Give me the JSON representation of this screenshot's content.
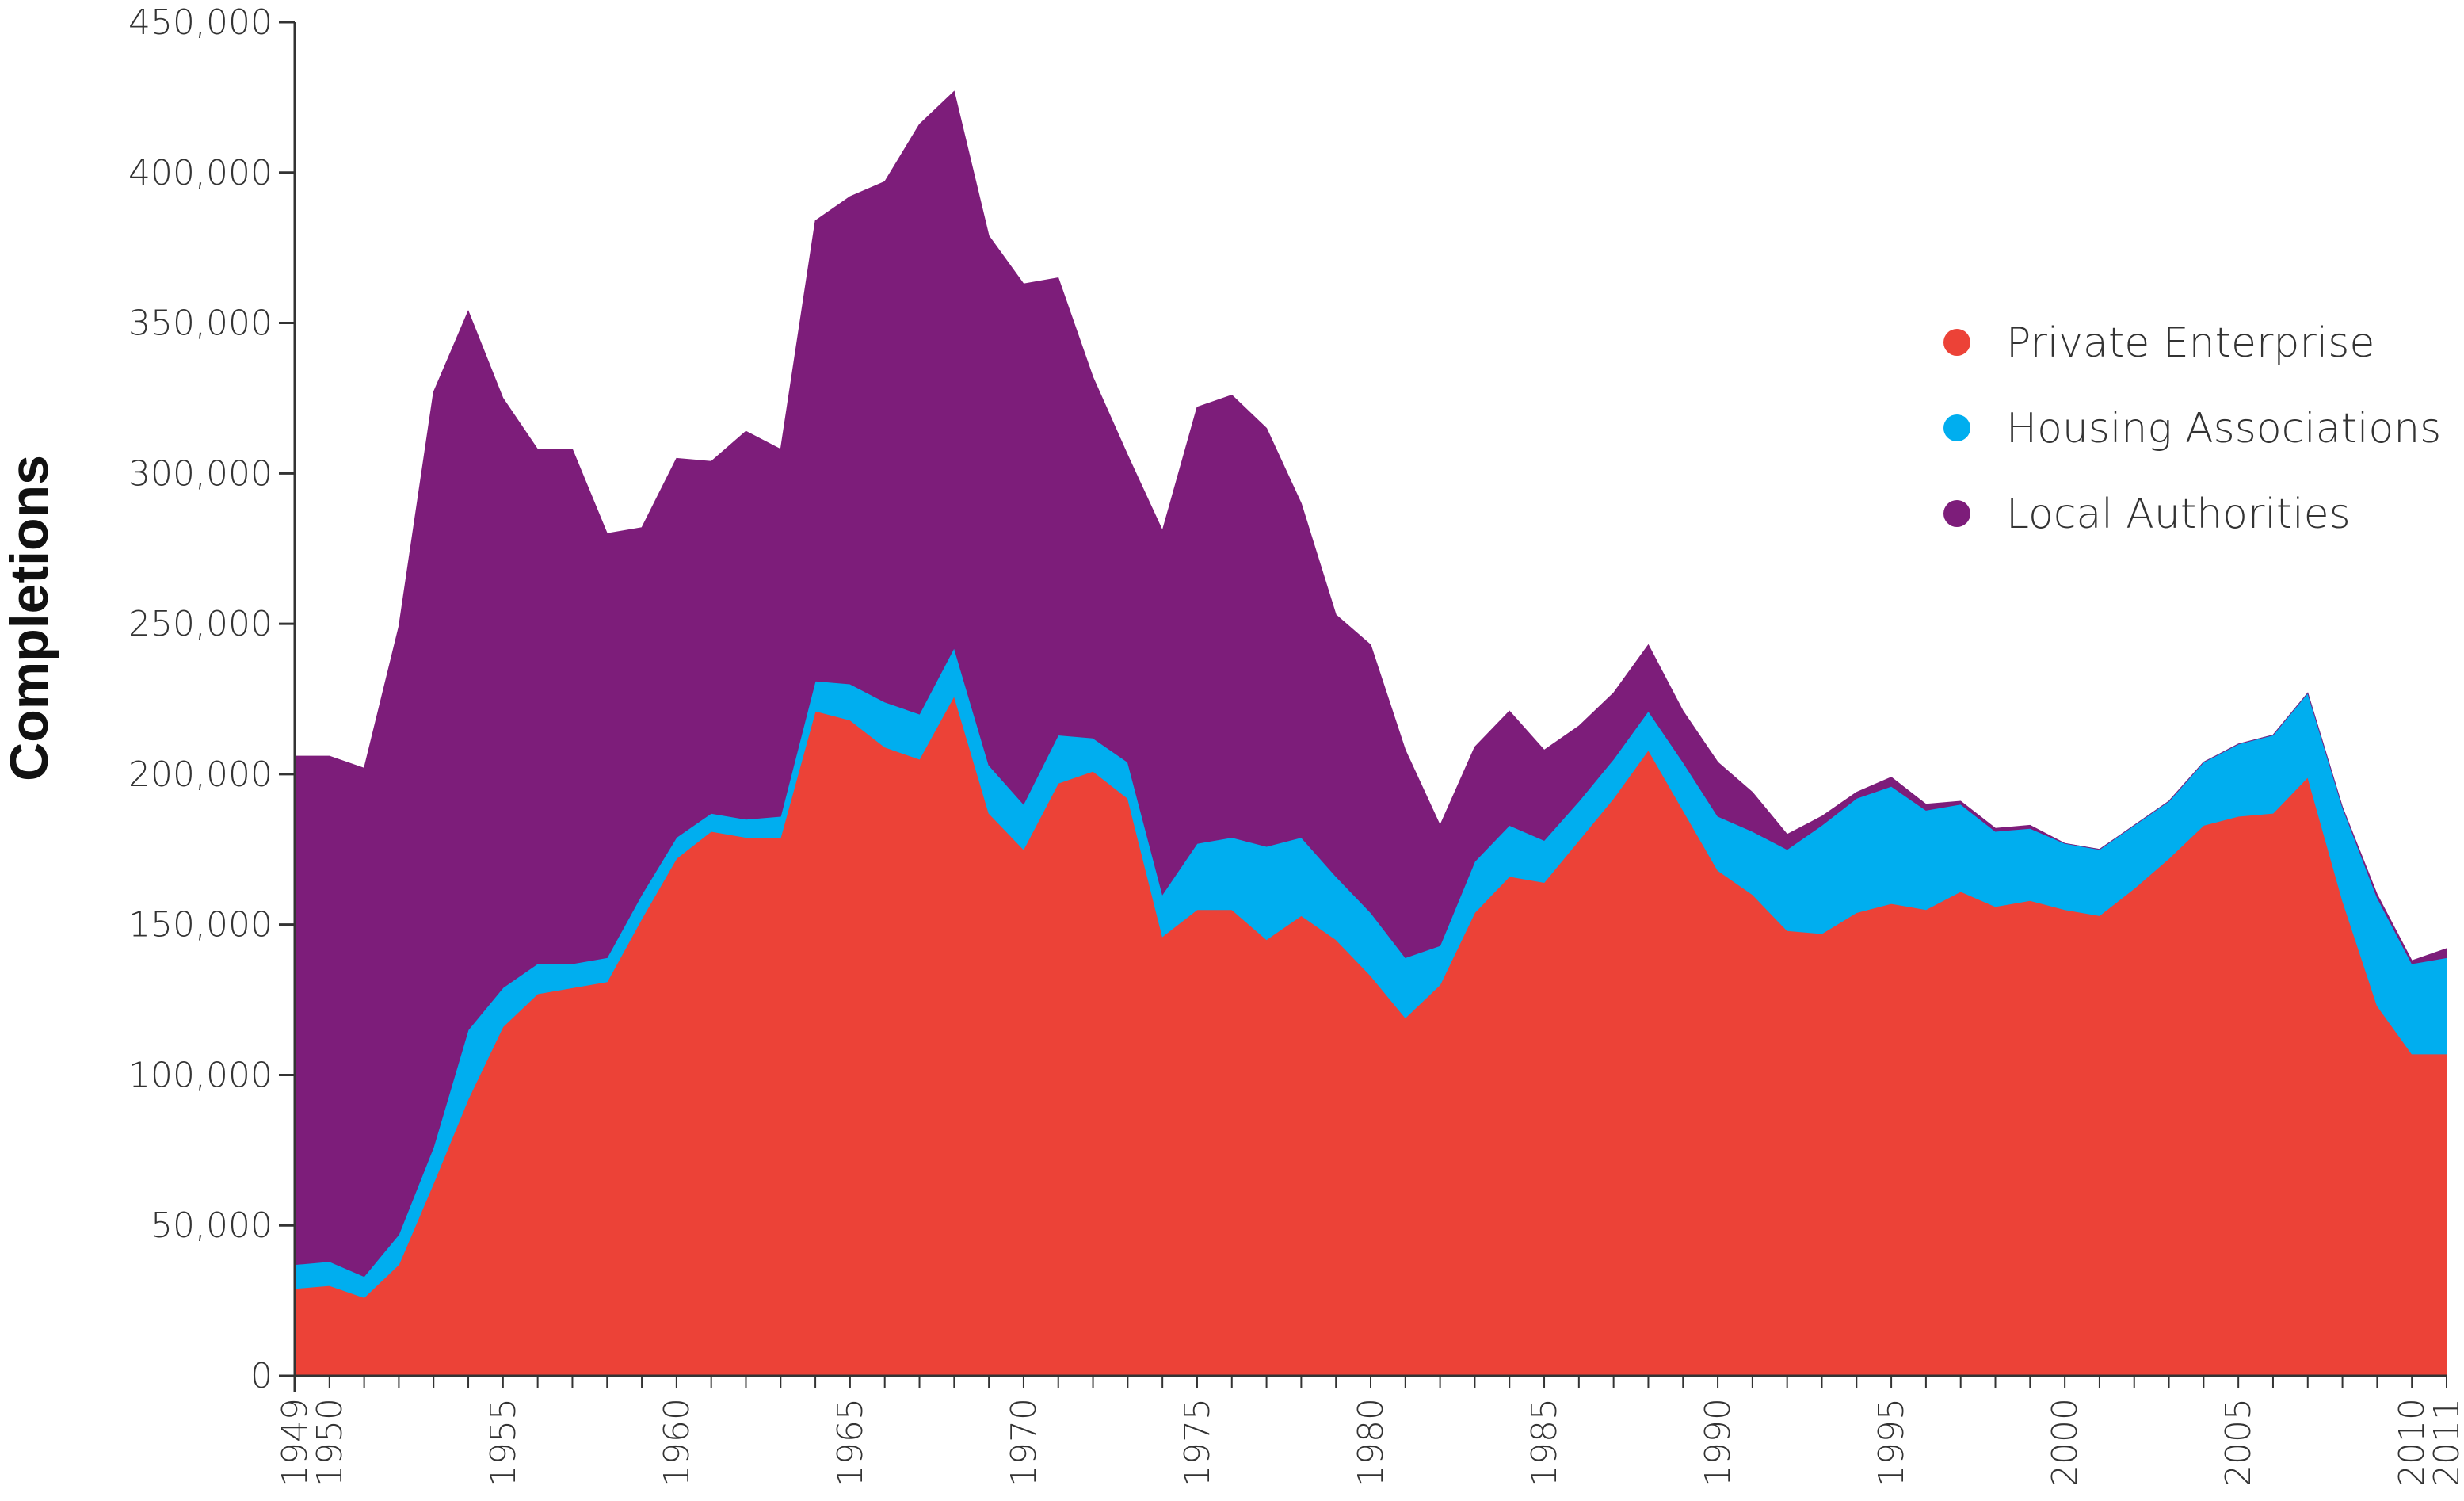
{
  "chart_data": {
    "type": "area",
    "stacked": true,
    "ylabel": "Completions",
    "xlabel": "",
    "ylim": [
      0,
      450000
    ],
    "xlim": [
      1949,
      2011
    ],
    "y_ticks": [
      0,
      50000,
      100000,
      150000,
      200000,
      250000,
      300000,
      350000,
      400000,
      450000
    ],
    "y_tick_labels": [
      "0",
      "50,000",
      "100,000",
      "150,000",
      "200,000",
      "250,000",
      "300,000",
      "350,000",
      "400,000",
      "450,000"
    ],
    "x_ticks": [
      1949,
      1950,
      1955,
      1960,
      1965,
      1970,
      1975,
      1980,
      1985,
      1990,
      1995,
      2000,
      2005,
      2010,
      2011
    ],
    "x_tick_labels": [
      "1949",
      "1950",
      "1955",
      "1960",
      "1965",
      "1970",
      "1975",
      "1980",
      "1985",
      "1990",
      "1995",
      "2000",
      "2005",
      "2010",
      "2011"
    ],
    "grid": false,
    "legend_position": "right",
    "x": [
      1949,
      1950,
      1951,
      1952,
      1953,
      1954,
      1955,
      1956,
      1957,
      1958,
      1959,
      1960,
      1961,
      1962,
      1963,
      1964,
      1965,
      1966,
      1967,
      1968,
      1969,
      1970,
      1971,
      1972,
      1973,
      1974,
      1975,
      1976,
      1977,
      1978,
      1979,
      1980,
      1981,
      1982,
      1983,
      1984,
      1985,
      1986,
      1987,
      1988,
      1989,
      1990,
      1991,
      1992,
      1993,
      1994,
      1995,
      1996,
      1997,
      1998,
      1999,
      2000,
      2001,
      2002,
      2003,
      2004,
      2005,
      2006,
      2007,
      2008,
      2009,
      2010,
      2011
    ],
    "series": [
      {
        "name": "Private Enterprise",
        "color": "#ec4237",
        "values": [
          29000,
          30000,
          26000,
          37000,
          64000,
          92000,
          116000,
          127000,
          129000,
          131000,
          152000,
          172000,
          181000,
          179000,
          179000,
          221000,
          218000,
          209000,
          205000,
          226000,
          187000,
          175000,
          197000,
          201000,
          192000,
          146000,
          155000,
          155000,
          145000,
          153000,
          145000,
          133000,
          119000,
          130000,
          154000,
          166000,
          164000,
          178000,
          192000,
          208000,
          188000,
          168000,
          160000,
          148000,
          147000,
          154000,
          157000,
          155000,
          161000,
          156000,
          158000,
          155000,
          153000,
          162000,
          172000,
          183000,
          186000,
          187000,
          199000,
          158000,
          123000,
          107000,
          107000
        ]
      },
      {
        "name": "Housing Associations",
        "color": "#00aeef",
        "values": [
          8000,
          8000,
          7000,
          10000,
          12000,
          23000,
          13000,
          10000,
          8000,
          8000,
          8000,
          7000,
          6000,
          6000,
          7000,
          10000,
          12000,
          15000,
          15000,
          16000,
          16000,
          15000,
          16000,
          11000,
          12000,
          14000,
          22000,
          24000,
          31000,
          26000,
          21000,
          21000,
          20000,
          13000,
          17000,
          17000,
          14000,
          13000,
          13000,
          13000,
          16000,
          18000,
          21000,
          27000,
          36000,
          38000,
          39000,
          33000,
          29000,
          25000,
          24000,
          22000,
          22000,
          21000,
          19000,
          21000,
          24000,
          26000,
          28000,
          31000,
          36000,
          30000,
          32000
        ]
      },
      {
        "name": "Local Authorities",
        "color": "#7d1d7a",
        "values": [
          169000,
          168000,
          169000,
          202000,
          251000,
          239000,
          196000,
          171000,
          171000,
          141000,
          122000,
          126000,
          117000,
          129000,
          122000,
          153000,
          162000,
          173000,
          196000,
          185000,
          176000,
          173000,
          152000,
          120000,
          102000,
          121000,
          145000,
          147000,
          139000,
          111000,
          87000,
          89000,
          69000,
          40000,
          38000,
          38000,
          30000,
          25000,
          22000,
          22000,
          17000,
          18000,
          13000,
          5000,
          3000,
          2000,
          3000,
          2000,
          1000,
          1000,
          1000,
          0,
          0,
          0,
          0,
          0,
          0,
          0,
          0,
          0,
          1000,
          1000,
          3000
        ]
      }
    ]
  },
  "legend": {
    "items": [
      {
        "label": "Private Enterprise",
        "color": "#ec4237"
      },
      {
        "label": "Housing Associations",
        "color": "#00aeef"
      },
      {
        "label": "Local Authorities",
        "color": "#7d1d7a"
      }
    ]
  }
}
